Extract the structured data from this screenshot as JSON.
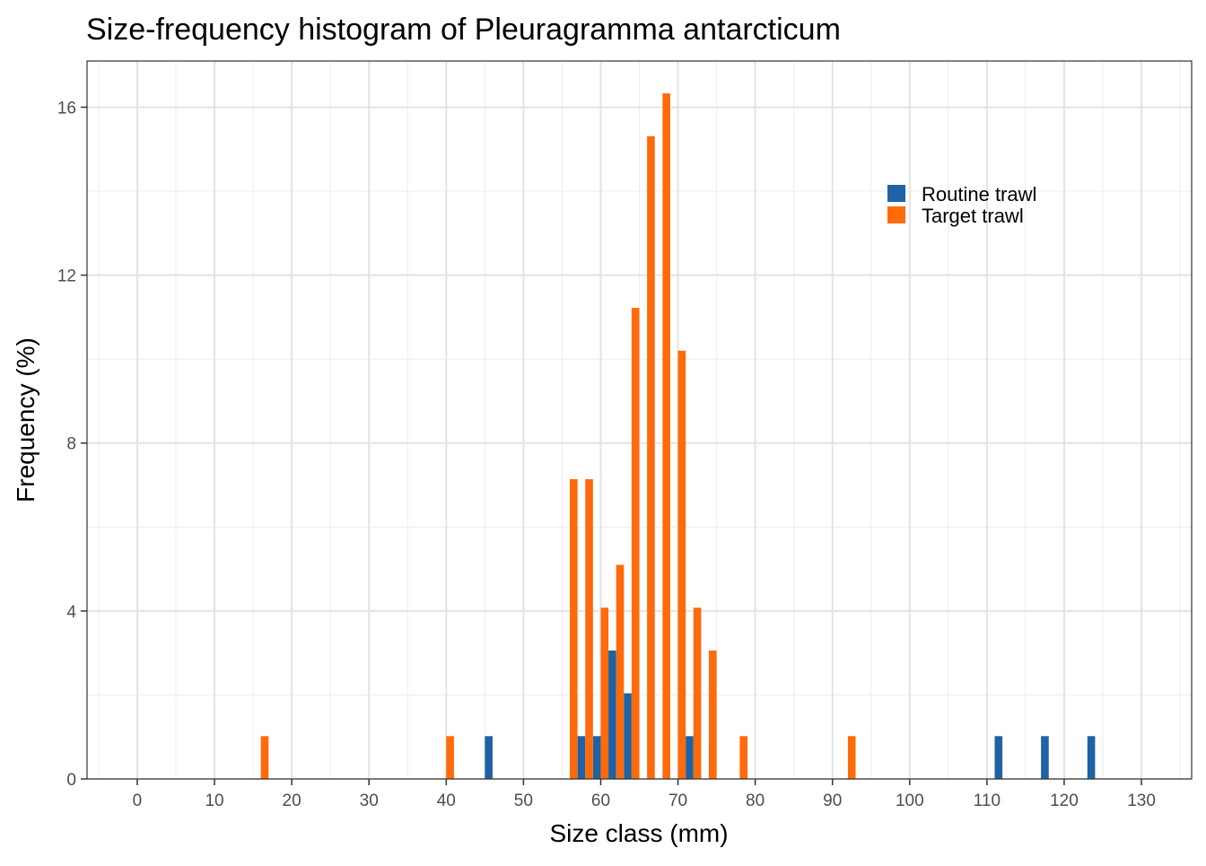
{
  "chart_data": {
    "type": "bar",
    "title": "Size-frequency histogram of Pleuragramma antarcticum",
    "xlabel": "Size class (mm)",
    "ylabel": "Frequency (%)",
    "xlim": [
      -6.5,
      136.5
    ],
    "ylim": [
      0,
      17.1
    ],
    "xticks": [
      "0",
      "10",
      "20",
      "30",
      "40",
      "50",
      "60",
      "70",
      "80",
      "90",
      "100",
      "110",
      "120",
      "130"
    ],
    "yticks": [
      "0",
      "4",
      "8",
      "12",
      "16"
    ],
    "grid": true,
    "legend_position": "top-right",
    "bin_width": 2,
    "series": [
      {
        "name": "Routine trawl",
        "color": "#1f62a6",
        "points": [
          [
            46,
            1.02
          ],
          [
            58,
            1.02
          ],
          [
            60,
            1.02
          ],
          [
            62,
            3.06
          ],
          [
            64,
            2.04
          ],
          [
            72,
            1.02
          ],
          [
            112,
            1.02
          ],
          [
            118,
            1.02
          ],
          [
            124,
            1.02
          ]
        ]
      },
      {
        "name": "Target trawl",
        "color": "#ff6a0a",
        "points": [
          [
            16,
            1.02
          ],
          [
            40,
            1.02
          ],
          [
            56,
            7.14
          ],
          [
            58,
            7.14
          ],
          [
            60,
            4.08
          ],
          [
            62,
            5.1
          ],
          [
            64,
            11.22
          ],
          [
            66,
            15.31
          ],
          [
            68,
            16.33
          ],
          [
            70,
            10.2
          ],
          [
            72,
            4.08
          ],
          [
            74,
            3.06
          ],
          [
            78,
            1.02
          ],
          [
            92,
            1.02
          ]
        ]
      }
    ]
  }
}
